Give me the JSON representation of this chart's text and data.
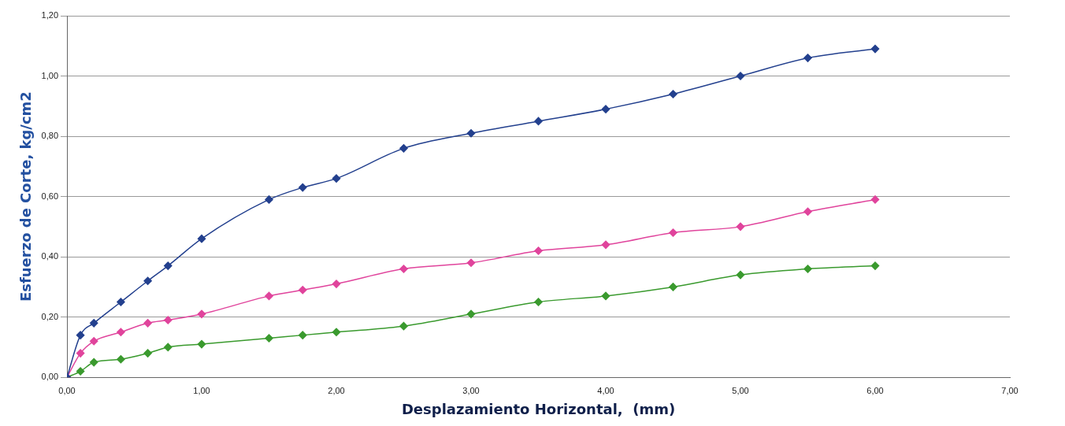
{
  "chart_data": {
    "type": "line",
    "xlabel": "Desplazamiento Horizontal,  (mm)",
    "ylabel": "Esfuerzo de Corte, kg/cm2",
    "x": [
      0,
      0.1,
      0.2,
      0.4,
      0.6,
      0.75,
      1.0,
      1.5,
      1.75,
      2.0,
      2.5,
      3.0,
      3.5,
      4.0,
      4.5,
      5.0,
      5.5,
      6.0
    ],
    "series": [
      {
        "color": "#23408e",
        "values": [
          0,
          0.14,
          0.18,
          0.25,
          0.32,
          0.37,
          0.46,
          0.59,
          0.63,
          0.66,
          0.76,
          0.81,
          0.85,
          0.89,
          0.94,
          1.0,
          1.06,
          1.09
        ]
      },
      {
        "color": "#e0449c",
        "values": [
          0,
          0.08,
          0.12,
          0.15,
          0.18,
          0.19,
          0.21,
          0.27,
          0.29,
          0.31,
          0.36,
          0.38,
          0.42,
          0.44,
          0.48,
          0.5,
          0.55,
          0.59
        ]
      },
      {
        "color": "#3a9a2e",
        "values": [
          0,
          0.02,
          0.05,
          0.06,
          0.08,
          0.1,
          0.11,
          0.13,
          0.14,
          0.15,
          0.17,
          0.21,
          0.25,
          0.27,
          0.3,
          0.34,
          0.36,
          0.37
        ]
      }
    ],
    "xlim": [
      0,
      7
    ],
    "xticks": [
      {
        "value": 0,
        "label": "0,00"
      },
      {
        "value": 1,
        "label": "1,00"
      },
      {
        "value": 2,
        "label": "2,00"
      },
      {
        "value": 3,
        "label": "3,00"
      },
      {
        "value": 4,
        "label": "4,00"
      },
      {
        "value": 5,
        "label": "5,00"
      },
      {
        "value": 6,
        "label": "6,00"
      },
      {
        "value": 7,
        "label": "7,00"
      }
    ],
    "ylim": [
      0,
      1.2
    ],
    "yticks": [
      {
        "value": 0,
        "label": "0,00"
      },
      {
        "value": 0.2,
        "label": "0,20"
      },
      {
        "value": 0.4,
        "label": "0,40"
      },
      {
        "value": 0.6,
        "label": "0,60"
      },
      {
        "value": 0.8,
        "label": "0,80"
      },
      {
        "value": 1.0,
        "label": "1,00"
      },
      {
        "value": 1.2,
        "label": "1,20"
      }
    ],
    "grid": "y",
    "legend": false,
    "marker": "diamond",
    "line_style": "solid"
  }
}
